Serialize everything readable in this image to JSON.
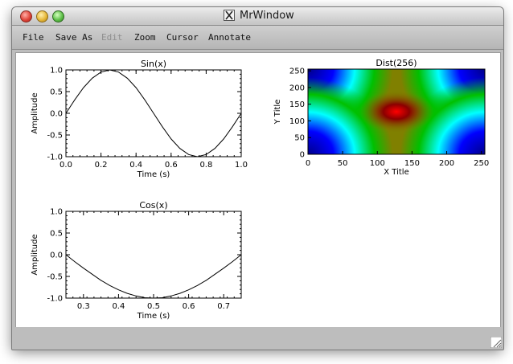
{
  "window": {
    "title": "MrWindow"
  },
  "menu": [
    {
      "name": "menu-file",
      "label": "File",
      "enabled": true
    },
    {
      "name": "menu-save-as",
      "label": "Save As",
      "enabled": true
    },
    {
      "name": "menu-edit",
      "label": "Edit",
      "enabled": false
    },
    {
      "name": "menu-zoom",
      "label": "Zoom",
      "enabled": true
    },
    {
      "name": "menu-cursor",
      "label": "Cursor",
      "enabled": true
    },
    {
      "name": "menu-annotate",
      "label": "Annotate",
      "enabled": true
    }
  ],
  "icons": [
    "close-icon",
    "minimize-icon",
    "zoom-icon",
    "x11-icon",
    "resize-grip-icon"
  ],
  "chart_data": [
    {
      "type": "line",
      "title": "Sin(x)",
      "xlabel": "Time (s)",
      "ylabel": "Amplitude",
      "xlim": [
        0.0,
        1.0
      ],
      "ylim": [
        -1.0,
        1.0
      ],
      "xticks": [
        "0.0",
        "0.2",
        "0.4",
        "0.6",
        "0.8",
        "1.0"
      ],
      "yticks": [
        "-1.0",
        "-0.5",
        "0.0",
        "0.5",
        "1.0"
      ],
      "series": [
        {
          "x": [
            0.0,
            0.05,
            0.1,
            0.15,
            0.2,
            0.25,
            0.3,
            0.35,
            0.4,
            0.45,
            0.5,
            0.55,
            0.6,
            0.65,
            0.7,
            0.75,
            0.8,
            0.85,
            0.9,
            0.95,
            1.0
          ],
          "y": [
            0.0,
            0.31,
            0.59,
            0.81,
            0.95,
            1.0,
            0.95,
            0.81,
            0.59,
            0.31,
            0.0,
            -0.31,
            -0.59,
            -0.81,
            -0.95,
            -1.0,
            -0.95,
            -0.81,
            -0.59,
            -0.31,
            0.0
          ]
        }
      ]
    },
    {
      "type": "heatmap",
      "title": "Dist(256)",
      "xlabel": "X Title",
      "ylabel": "Y Title",
      "xlim": [
        0,
        255
      ],
      "ylim": [
        0,
        255
      ],
      "xticks": [
        "0",
        "50",
        "100",
        "150",
        "200",
        "250"
      ],
      "yticks": [
        "0",
        "50",
        "100",
        "150",
        "200",
        "250"
      ],
      "colormap": [
        "#00008b",
        "#0000ff",
        "#00ffff",
        "#00c000",
        "#808000",
        "#8b0000",
        "#ff0000"
      ]
    },
    {
      "type": "line",
      "title": "Cos(x)",
      "xlabel": "Time (s)",
      "ylabel": "Amplitude",
      "xlim": [
        0.25,
        0.75
      ],
      "ylim": [
        -1.0,
        1.0
      ],
      "xticks": [
        "0.3",
        "0.4",
        "0.5",
        "0.6",
        "0.7"
      ],
      "yticks": [
        "-1.0",
        "-0.5",
        "0.0",
        "0.5",
        "1.0"
      ],
      "series": [
        {
          "x": [
            0.25,
            0.275,
            0.3,
            0.325,
            0.35,
            0.375,
            0.4,
            0.425,
            0.45,
            0.475,
            0.5,
            0.525,
            0.55,
            0.575,
            0.6,
            0.625,
            0.65,
            0.675,
            0.7,
            0.725,
            0.75
          ],
          "y": [
            0.0,
            -0.16,
            -0.31,
            -0.45,
            -0.59,
            -0.71,
            -0.81,
            -0.89,
            -0.95,
            -0.99,
            -1.0,
            -0.99,
            -0.95,
            -0.89,
            -0.81,
            -0.71,
            -0.59,
            -0.45,
            -0.31,
            -0.16,
            0.0
          ]
        }
      ]
    }
  ]
}
